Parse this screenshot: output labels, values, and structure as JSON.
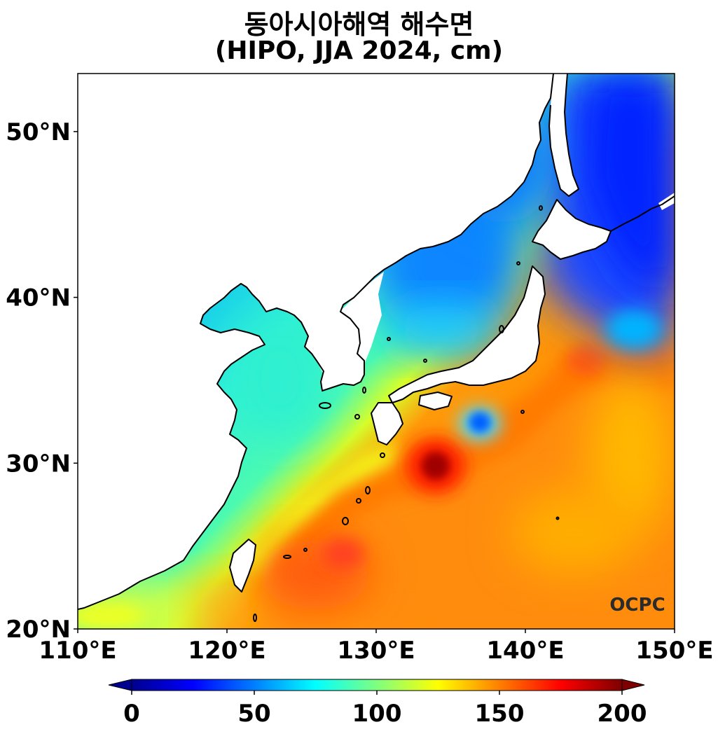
{
  "title_line1": "동아시아해역 해수면",
  "title_line2": "(HIPO, JJA 2024, cm)",
  "logo": "OCPC",
  "map": {
    "lon_range": [
      110,
      150
    ],
    "lat_range": [
      20,
      53.5
    ],
    "lon_ticks": [
      {
        "value": 110,
        "label": "110°E"
      },
      {
        "value": 120,
        "label": "120°E"
      },
      {
        "value": 130,
        "label": "130°E"
      },
      {
        "value": 140,
        "label": "140°E"
      },
      {
        "value": 150,
        "label": "150°E"
      }
    ],
    "lat_ticks": [
      {
        "value": 20,
        "label": "20°N"
      },
      {
        "value": 30,
        "label": "30°N"
      },
      {
        "value": 40,
        "label": "40°N"
      },
      {
        "value": 50,
        "label": "50°N"
      }
    ]
  },
  "colorbar": {
    "min": 0,
    "max": 200,
    "ticks": [
      {
        "value": 0,
        "label": "0"
      },
      {
        "value": 50,
        "label": "50"
      },
      {
        "value": 100,
        "label": "100"
      },
      {
        "value": 150,
        "label": "150"
      },
      {
        "value": 200,
        "label": "200"
      }
    ],
    "colormap": "jet",
    "colors": [
      "#00008f",
      "#0000ff",
      "#007fff",
      "#00ffff",
      "#7fff7f",
      "#ffff00",
      "#ff7f00",
      "#ff0000",
      "#7f0000"
    ]
  },
  "colors": {
    "land": "#ffffff",
    "coastline": "#000000"
  }
}
